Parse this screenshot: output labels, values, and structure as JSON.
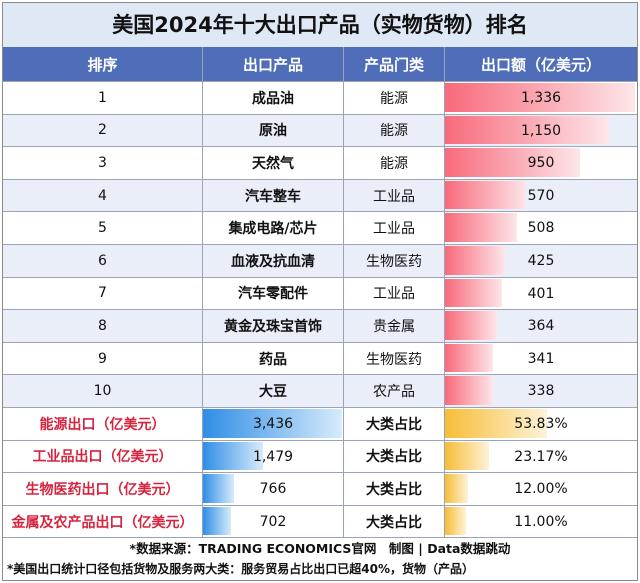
{
  "title": "美国2024年十大出口产品（实物货物）排名",
  "columns": [
    "排序",
    "出口产品",
    "产品门类",
    "出口额（亿美元）"
  ],
  "chart_data": {
    "type": "table",
    "title": "美国2024年十大出口产品（实物货物）排名",
    "rows": [
      {
        "rank": "1",
        "product": "成品油",
        "category": "能源",
        "value": 1336,
        "label": "1,336"
      },
      {
        "rank": "2",
        "product": "原油",
        "category": "能源",
        "value": 1150,
        "label": "1,150"
      },
      {
        "rank": "3",
        "product": "天然气",
        "category": "能源",
        "value": 950,
        "label": "950"
      },
      {
        "rank": "4",
        "product": "汽车整车",
        "category": "工业品",
        "value": 570,
        "label": "570"
      },
      {
        "rank": "5",
        "product": "集成电路/芯片",
        "category": "工业品",
        "value": 508,
        "label": "508"
      },
      {
        "rank": "6",
        "product": "血液及抗血清",
        "category": "生物医药",
        "value": 425,
        "label": "425"
      },
      {
        "rank": "7",
        "product": "汽车零配件",
        "category": "工业品",
        "value": 401,
        "label": "401"
      },
      {
        "rank": "8",
        "product": "黄金及珠宝首饰",
        "category": "贵金属",
        "value": 364,
        "label": "364"
      },
      {
        "rank": "9",
        "product": "药品",
        "category": "生物医药",
        "value": 341,
        "label": "341"
      },
      {
        "rank": "10",
        "product": "大豆",
        "category": "农产品",
        "value": 338,
        "label": "338"
      }
    ],
    "categories_summary": [
      {
        "name": "能源出口（亿美元）",
        "value": 3436,
        "label": "3,436",
        "share_label": "大类占比",
        "share": 53.83,
        "share_text": "53.83%"
      },
      {
        "name": "工业品出口（亿美元）",
        "value": 1479,
        "label": "1,479",
        "share_label": "大类占比",
        "share": 23.17,
        "share_text": "23.17%"
      },
      {
        "name": "生物医药出口（亿美元）",
        "value": 766,
        "label": "766",
        "share_label": "大类占比",
        "share": 12.0,
        "share_text": "12.00%"
      },
      {
        "name": "金属及农产品出口（亿美元）",
        "value": 702,
        "label": "702",
        "share_label": "大类占比",
        "share": 11.0,
        "share_text": "11.00%"
      }
    ]
  },
  "colors": {
    "header_bg": "#4f6db8",
    "title_bg": "#dfe8f5",
    "bar_red": "#f86a7b",
    "bar_blue": "#2f8ee6",
    "bar_gold": "#f7bd37",
    "category_text": "#d6243e"
  },
  "footer": {
    "source": "*数据来源：TRADING ECONOMICS官网　制图 | Data数据跳动",
    "note": "*美国出口统计口径包括货物及服务两大类：服务贸易占比出口已超40%，货物（产品）"
  }
}
